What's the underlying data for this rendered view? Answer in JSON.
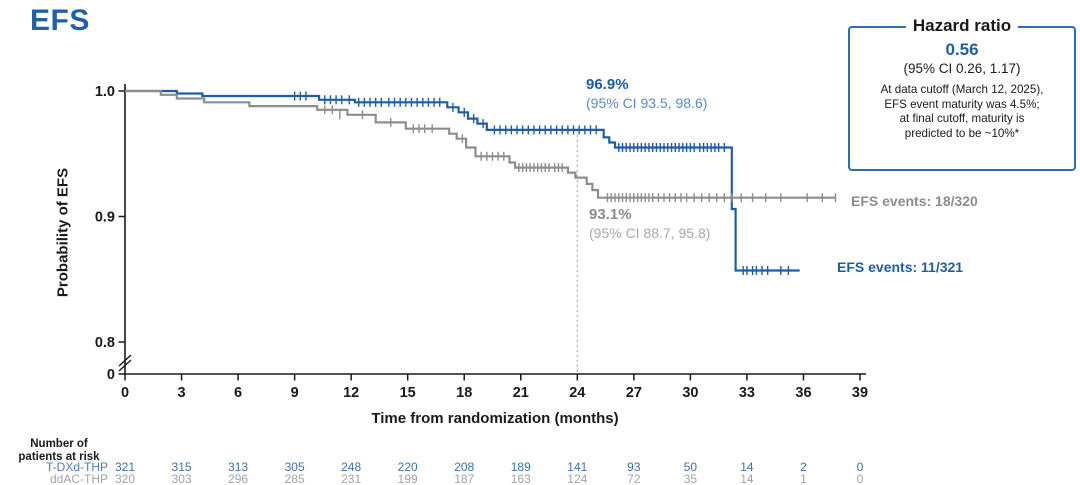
{
  "page": {
    "title": "EFS"
  },
  "hazard_box": {
    "title": "Hazard ratio",
    "value": "0.56",
    "ci": "(95% CI 0.26, 1.17)",
    "note": "At data cutoff (March 12, 2025),\nEFS event maturity was 4.5%;\nat final cutoff, maturity is\npredicted to be ~10%*"
  },
  "annotations": {
    "tdxd": {
      "value": "96.9%",
      "ci": "(95% CI 93.5, 98.6)"
    },
    "ddac": {
      "value": "93.1%",
      "ci": "(95% CI 88.7, 95.8)"
    },
    "events_tdxd": "EFS events: 11/321",
    "events_ddac": "EFS events: 18/320"
  },
  "chart_data": {
    "type": "line",
    "subtype": "kaplan-meier-step",
    "title": "EFS",
    "xlabel": "Time from randomization (months)",
    "ylabel": "Probability of EFS",
    "xlim": [
      0,
      39
    ],
    "ylim_display": [
      0.8,
      1.0
    ],
    "axis_break": true,
    "grid": false,
    "landmark_x": 24,
    "x_ticks": [
      0,
      3,
      6,
      9,
      12,
      15,
      18,
      21,
      24,
      27,
      30,
      33,
      36,
      39
    ],
    "y_ticks": [
      {
        "label": "1.0",
        "value": 1.0
      },
      {
        "label": "0.9",
        "value": 0.9
      },
      {
        "label": "0.8",
        "value": 0.8
      },
      {
        "label": "0",
        "value": 0
      }
    ],
    "series": [
      {
        "name": "T-DXd-THP",
        "color": "#1f5ca8",
        "landmark_estimate_at_24mo": 0.969,
        "events": "11/321",
        "steps": [
          [
            0,
            1.0
          ],
          [
            2.75,
            1.0
          ],
          [
            2.75,
            0.998
          ],
          [
            4.1,
            0.998
          ],
          [
            4.1,
            0.996
          ],
          [
            10.3,
            0.996
          ],
          [
            10.3,
            0.993
          ],
          [
            12.2,
            0.993
          ],
          [
            12.2,
            0.991
          ],
          [
            17.1,
            0.991
          ],
          [
            17.1,
            0.987
          ],
          [
            17.7,
            0.987
          ],
          [
            17.7,
            0.983
          ],
          [
            18.2,
            0.983
          ],
          [
            18.2,
            0.978
          ],
          [
            18.7,
            0.978
          ],
          [
            18.7,
            0.974
          ],
          [
            19.2,
            0.974
          ],
          [
            19.2,
            0.969
          ],
          [
            25.4,
            0.969
          ],
          [
            25.4,
            0.963
          ],
          [
            25.7,
            0.963
          ],
          [
            25.7,
            0.959
          ],
          [
            26.0,
            0.959
          ],
          [
            26.0,
            0.955
          ],
          [
            32.2,
            0.955
          ],
          [
            32.2,
            0.906
          ],
          [
            32.4,
            0.906
          ],
          [
            32.4,
            0.857
          ],
          [
            35.8,
            0.857
          ]
        ],
        "censors": [
          [
            9.0,
            0.996
          ],
          [
            9.3,
            0.996
          ],
          [
            9.6,
            0.996
          ],
          [
            10.6,
            0.993
          ],
          [
            10.9,
            0.993
          ],
          [
            11.2,
            0.993
          ],
          [
            11.5,
            0.993
          ],
          [
            11.9,
            0.993
          ],
          [
            12.4,
            0.991
          ],
          [
            12.7,
            0.991
          ],
          [
            13.0,
            0.991
          ],
          [
            13.3,
            0.991
          ],
          [
            13.6,
            0.991
          ],
          [
            14.0,
            0.991
          ],
          [
            14.3,
            0.991
          ],
          [
            14.6,
            0.991
          ],
          [
            14.9,
            0.991
          ],
          [
            15.2,
            0.991
          ],
          [
            15.5,
            0.991
          ],
          [
            15.8,
            0.991
          ],
          [
            16.1,
            0.991
          ],
          [
            16.4,
            0.991
          ],
          [
            16.7,
            0.991
          ],
          [
            17.4,
            0.987
          ],
          [
            18.0,
            0.983
          ],
          [
            18.5,
            0.978
          ],
          [
            19.0,
            0.974
          ],
          [
            19.6,
            0.969
          ],
          [
            19.9,
            0.969
          ],
          [
            20.2,
            0.969
          ],
          [
            20.5,
            0.969
          ],
          [
            20.8,
            0.969
          ],
          [
            21.1,
            0.969
          ],
          [
            21.4,
            0.969
          ],
          [
            21.7,
            0.969
          ],
          [
            22.0,
            0.969
          ],
          [
            22.3,
            0.969
          ],
          [
            22.6,
            0.969
          ],
          [
            22.9,
            0.969
          ],
          [
            23.2,
            0.969
          ],
          [
            23.5,
            0.969
          ],
          [
            23.8,
            0.969
          ],
          [
            24.1,
            0.969
          ],
          [
            24.4,
            0.969
          ],
          [
            24.7,
            0.969
          ],
          [
            25.0,
            0.969
          ],
          [
            26.2,
            0.955
          ],
          [
            26.4,
            0.955
          ],
          [
            26.6,
            0.955
          ],
          [
            26.8,
            0.955
          ],
          [
            27.0,
            0.955
          ],
          [
            27.2,
            0.955
          ],
          [
            27.4,
            0.955
          ],
          [
            27.6,
            0.955
          ],
          [
            27.8,
            0.955
          ],
          [
            28.0,
            0.955
          ],
          [
            28.2,
            0.955
          ],
          [
            28.4,
            0.955
          ],
          [
            28.6,
            0.955
          ],
          [
            28.8,
            0.955
          ],
          [
            29.0,
            0.955
          ],
          [
            29.2,
            0.955
          ],
          [
            29.4,
            0.955
          ],
          [
            29.6,
            0.955
          ],
          [
            29.8,
            0.955
          ],
          [
            30.0,
            0.955
          ],
          [
            30.2,
            0.955
          ],
          [
            30.5,
            0.955
          ],
          [
            30.7,
            0.955
          ],
          [
            30.9,
            0.955
          ],
          [
            31.1,
            0.955
          ],
          [
            31.3,
            0.955
          ],
          [
            31.5,
            0.955
          ],
          [
            31.8,
            0.955
          ],
          [
            32.8,
            0.857
          ],
          [
            33.0,
            0.857
          ],
          [
            33.3,
            0.857
          ],
          [
            33.5,
            0.857
          ],
          [
            33.8,
            0.857
          ],
          [
            34.1,
            0.857
          ],
          [
            34.8,
            0.857
          ],
          [
            35.2,
            0.857
          ]
        ]
      },
      {
        "name": "ddAC-THP",
        "color": "#8d8d8d",
        "landmark_estimate_at_24mo": 0.931,
        "events": "18/320",
        "steps": [
          [
            0,
            1.0
          ],
          [
            1.9,
            1.0
          ],
          [
            1.9,
            0.997
          ],
          [
            2.75,
            0.997
          ],
          [
            2.75,
            0.994
          ],
          [
            4.2,
            0.994
          ],
          [
            4.2,
            0.991
          ],
          [
            6.6,
            0.991
          ],
          [
            6.6,
            0.988
          ],
          [
            10.2,
            0.988
          ],
          [
            10.2,
            0.985
          ],
          [
            11.8,
            0.985
          ],
          [
            11.8,
            0.981
          ],
          [
            13.3,
            0.981
          ],
          [
            13.3,
            0.975
          ],
          [
            14.9,
            0.975
          ],
          [
            14.9,
            0.97
          ],
          [
            17.2,
            0.97
          ],
          [
            17.2,
            0.966
          ],
          [
            17.6,
            0.966
          ],
          [
            17.6,
            0.962
          ],
          [
            18.1,
            0.962
          ],
          [
            18.1,
            0.955
          ],
          [
            18.6,
            0.955
          ],
          [
            18.6,
            0.948
          ],
          [
            20.4,
            0.948
          ],
          [
            20.4,
            0.943
          ],
          [
            20.7,
            0.943
          ],
          [
            20.7,
            0.939
          ],
          [
            23.5,
            0.939
          ],
          [
            23.5,
            0.935
          ],
          [
            23.9,
            0.935
          ],
          [
            23.9,
            0.931
          ],
          [
            24.5,
            0.931
          ],
          [
            24.5,
            0.926
          ],
          [
            24.8,
            0.926
          ],
          [
            24.8,
            0.921
          ],
          [
            25.1,
            0.921
          ],
          [
            25.1,
            0.915
          ],
          [
            37.7,
            0.915
          ]
        ],
        "censors": [
          [
            10.6,
            0.985
          ],
          [
            11.0,
            0.985
          ],
          [
            11.4,
            0.981
          ],
          [
            12.6,
            0.981
          ],
          [
            14.1,
            0.975
          ],
          [
            15.3,
            0.97
          ],
          [
            15.6,
            0.97
          ],
          [
            15.9,
            0.97
          ],
          [
            16.3,
            0.97
          ],
          [
            17.9,
            0.962
          ],
          [
            18.9,
            0.948
          ],
          [
            19.2,
            0.948
          ],
          [
            19.5,
            0.948
          ],
          [
            19.8,
            0.948
          ],
          [
            20.1,
            0.948
          ],
          [
            20.9,
            0.939
          ],
          [
            21.1,
            0.939
          ],
          [
            21.3,
            0.939
          ],
          [
            21.5,
            0.939
          ],
          [
            21.7,
            0.939
          ],
          [
            21.9,
            0.939
          ],
          [
            22.1,
            0.939
          ],
          [
            22.3,
            0.939
          ],
          [
            22.5,
            0.939
          ],
          [
            22.8,
            0.939
          ],
          [
            23.0,
            0.939
          ],
          [
            23.2,
            0.939
          ],
          [
            25.6,
            0.915
          ],
          [
            25.8,
            0.915
          ],
          [
            26.0,
            0.915
          ],
          [
            26.2,
            0.915
          ],
          [
            26.4,
            0.915
          ],
          [
            26.6,
            0.915
          ],
          [
            26.8,
            0.915
          ],
          [
            27.0,
            0.915
          ],
          [
            27.2,
            0.915
          ],
          [
            27.4,
            0.915
          ],
          [
            27.6,
            0.915
          ],
          [
            27.8,
            0.915
          ],
          [
            28.0,
            0.915
          ],
          [
            28.3,
            0.915
          ],
          [
            28.6,
            0.915
          ],
          [
            28.9,
            0.915
          ],
          [
            29.2,
            0.915
          ],
          [
            29.5,
            0.915
          ],
          [
            29.8,
            0.915
          ],
          [
            30.2,
            0.915
          ],
          [
            30.6,
            0.915
          ],
          [
            31.0,
            0.915
          ],
          [
            31.4,
            0.915
          ],
          [
            31.8,
            0.915
          ],
          [
            32.2,
            0.915
          ],
          [
            32.7,
            0.915
          ],
          [
            33.3,
            0.915
          ],
          [
            34.0,
            0.915
          ],
          [
            34.8,
            0.915
          ],
          [
            36.2,
            0.915
          ],
          [
            37.0,
            0.915
          ],
          [
            37.7,
            0.915
          ]
        ]
      }
    ]
  },
  "risk_table": {
    "header": "Number of\npatients at risk",
    "months": [
      0,
      3,
      6,
      9,
      12,
      15,
      18,
      21,
      24,
      27,
      30,
      33,
      36,
      39
    ],
    "rows": [
      {
        "name": "T-DXd-THP",
        "color": "#4a7ebb",
        "value_color": "#3c72b0",
        "values": [
          "321",
          "315",
          "313",
          "305",
          "248",
          "220",
          "208",
          "189",
          "141",
          "93",
          "50",
          "14",
          "2",
          "0"
        ]
      },
      {
        "name": "ddAC-THP",
        "color": "#a3a3a3",
        "value_color": "#a3a3a3",
        "values": [
          "320",
          "303",
          "296",
          "285",
          "231",
          "199",
          "187",
          "163",
          "124",
          "72",
          "35",
          "14",
          "1",
          "0"
        ]
      }
    ]
  },
  "colors": {
    "title_blue": "#2060a9",
    "curve_blue": "#1f5ca8",
    "curve_gray": "#8d8d8d",
    "axis": "#1a1a1a",
    "landmark_line": "#b3b3b3",
    "hazard_border": "#2e6cb5"
  }
}
